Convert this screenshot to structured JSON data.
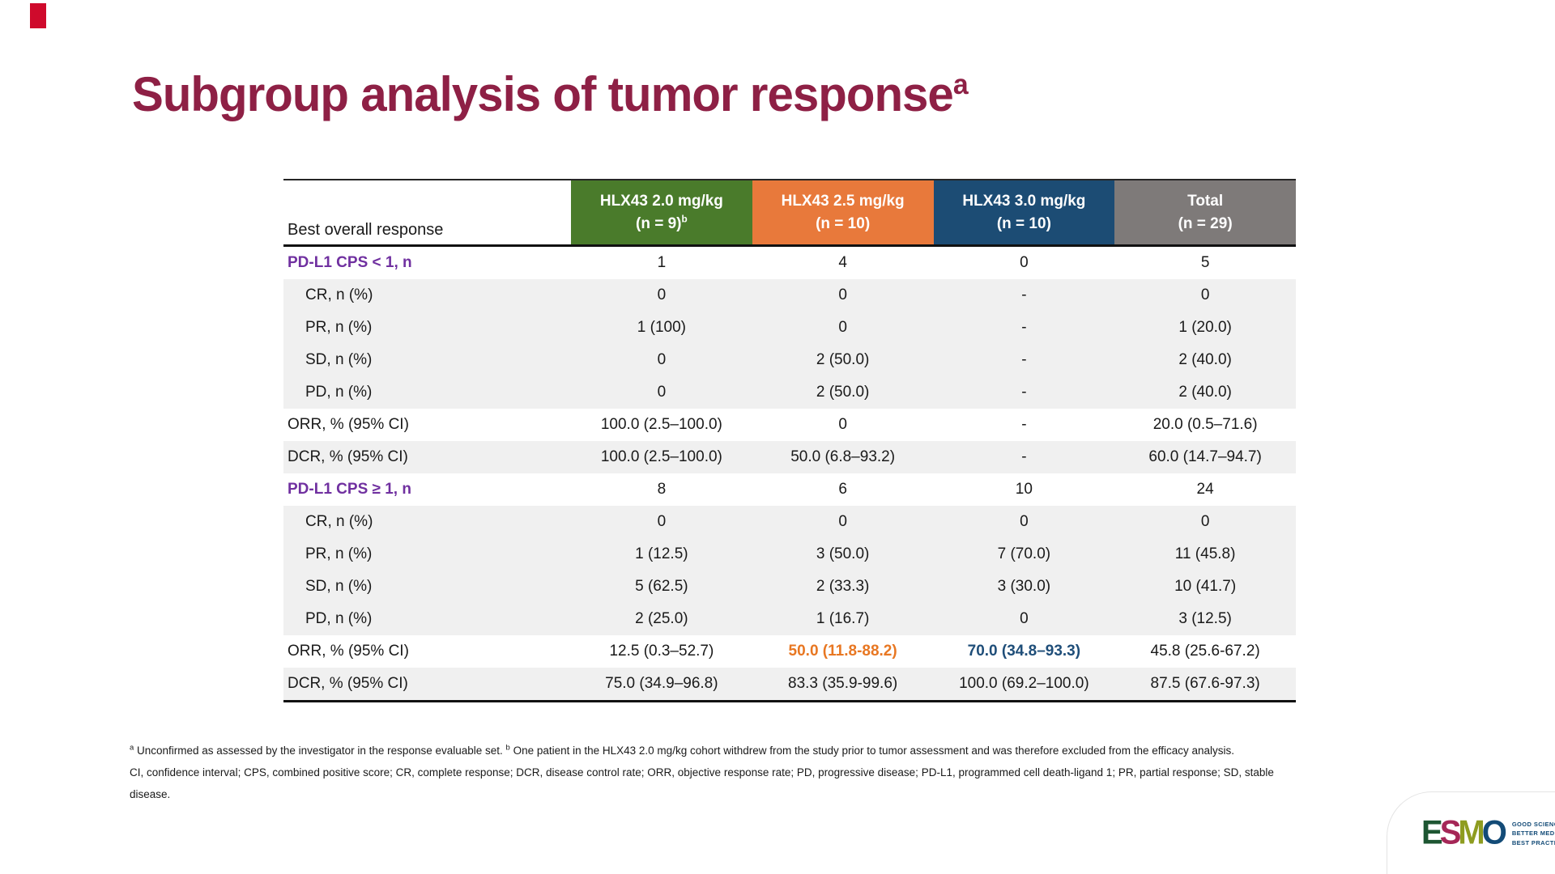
{
  "slide": {
    "title": "Subgroup analysis of tumor response",
    "title_superscript": "a",
    "title_color": "#8E2045",
    "red_mark_color": "#CF0A2C",
    "section_label_color": "#7030A0",
    "shaded_row_color": "#F0F0F0"
  },
  "table": {
    "row_header_label": "Best overall response",
    "columns": [
      {
        "line1": "HLX43 2.0 mg/kg",
        "line2": "(n = 9)",
        "superscript": "b",
        "color": "#4A7B2B"
      },
      {
        "line1": "HLX43 2.5 mg/kg",
        "line2": "(n = 10)",
        "superscript": "",
        "color": "#E8793B"
      },
      {
        "line1": "HLX43 3.0 mg/kg",
        "line2": "(n = 10)",
        "superscript": "",
        "color": "#1C4C74"
      },
      {
        "line1": "Total",
        "line2": "(n = 29)",
        "superscript": "",
        "color": "#7E7A79"
      }
    ],
    "rows": [
      {
        "label": "PD-L1 CPS < 1, n",
        "type": "section",
        "shaded": false,
        "values": [
          "1",
          "4",
          "0",
          "5"
        ]
      },
      {
        "label": "CR, n (%)",
        "type": "sub",
        "shaded": true,
        "values": [
          "0",
          "0",
          "-",
          "0"
        ]
      },
      {
        "label": "PR, n (%)",
        "type": "sub",
        "shaded": true,
        "values": [
          "1 (100)",
          "0",
          "-",
          "1 (20.0)"
        ]
      },
      {
        "label": "SD, n (%)",
        "type": "sub",
        "shaded": true,
        "values": [
          "0",
          "2 (50.0)",
          "-",
          "2 (40.0)"
        ]
      },
      {
        "label": "PD, n (%)",
        "type": "sub",
        "shaded": true,
        "values": [
          "0",
          "2 (50.0)",
          "-",
          "2 (40.0)"
        ]
      },
      {
        "label": "ORR, % (95% CI)",
        "type": "stat",
        "shaded": false,
        "values": [
          "100.0 (2.5–100.0)",
          "0",
          "-",
          "20.0 (0.5–71.6)"
        ]
      },
      {
        "label": "DCR, % (95% CI)",
        "type": "stat",
        "shaded": true,
        "values": [
          "100.0 (2.5–100.0)",
          "50.0 (6.8–93.2)",
          "-",
          "60.0 (14.7–94.7)"
        ]
      },
      {
        "label": "PD-L1 CPS ≥ 1, n",
        "type": "section",
        "shaded": false,
        "values": [
          "8",
          "6",
          "10",
          "24"
        ]
      },
      {
        "label": "CR, n (%)",
        "type": "sub",
        "shaded": true,
        "values": [
          "0",
          "0",
          "0",
          "0"
        ]
      },
      {
        "label": "PR, n (%)",
        "type": "sub",
        "shaded": true,
        "values": [
          "1 (12.5)",
          "3 (50.0)",
          "7 (70.0)",
          "11 (45.8)"
        ]
      },
      {
        "label": "SD, n (%)",
        "type": "sub",
        "shaded": true,
        "values": [
          "5 (62.5)",
          "2 (33.3)",
          "3 (30.0)",
          "10 (41.7)"
        ]
      },
      {
        "label": "PD, n (%)",
        "type": "sub",
        "shaded": true,
        "values": [
          "2 (25.0)",
          "1 (16.7)",
          "0",
          "3 (12.5)"
        ]
      },
      {
        "label": "ORR, % (95% CI)",
        "type": "stat",
        "shaded": false,
        "values": [
          "12.5 (0.3–52.7)",
          "50.0 (11.8-88.2)",
          "70.0 (34.8–93.3)",
          "45.8 (25.6-67.2)"
        ],
        "value_colors": [
          "",
          "#E87722",
          "#1F4E79",
          ""
        ],
        "value_bold": [
          false,
          true,
          true,
          false
        ]
      },
      {
        "label": "DCR, % (95% CI)",
        "type": "stat",
        "shaded": true,
        "values": [
          "75.0 (34.9–96.8)",
          "83.3 (35.9-99.6)",
          "100.0 (69.2–100.0)",
          "87.5 (67.6-97.3)"
        ]
      }
    ]
  },
  "footnotes": {
    "note1_sup_a": "a",
    "note1_text_a": "Unconfirmed as assessed by the investigator in the response evaluable set.",
    "note1_sup_b": "b",
    "note1_text_b": "One patient in the HLX43 2.0 mg/kg cohort withdrew from the study prior to tumor assessment and was therefore excluded from the efficacy analysis.",
    "note2": "CI, confidence interval; CPS, combined positive score; CR, complete response; DCR, disease control rate; ORR, objective response rate; PD, progressive disease; PD-L1, programmed cell death-ligand 1; PR, partial response; SD, stable disease."
  },
  "logo": {
    "letters": [
      {
        "char": "E",
        "color": "#1D5632"
      },
      {
        "char": "S",
        "color": "#A52757"
      },
      {
        "char": "M",
        "color": "#8E9C20"
      },
      {
        "char": "O",
        "color": "#134B77"
      }
    ],
    "tagline_color": "#134B77",
    "tagline_lines": [
      "GOOD SCIENCE",
      "BETTER MEDICINE",
      "BEST PRACTICE"
    ]
  }
}
